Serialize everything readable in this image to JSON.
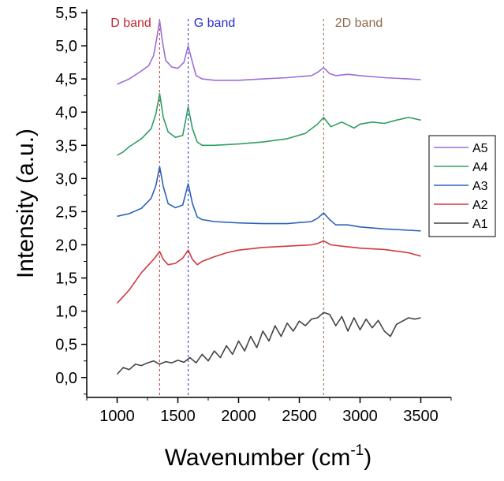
{
  "chart_data": {
    "type": "line",
    "title": "",
    "xlabel": "Wavenumber (cm",
    "xlabel_sup": "-1",
    "xlabel_close": ")",
    "ylabel": "Intensity (a.u.)",
    "xlim": [
      750,
      3750
    ],
    "ylim": [
      -0.3,
      5.5
    ],
    "x_ticks": [
      1000,
      1500,
      2000,
      2500,
      3000,
      3500
    ],
    "x_tick_labels": [
      "1000",
      "1500",
      "2000",
      "2500",
      "3000",
      "3500"
    ],
    "y_ticks": [
      0.0,
      0.5,
      1.0,
      1.5,
      2.0,
      2.5,
      3.0,
      3.5,
      4.0,
      4.5,
      5.0,
      5.5
    ],
    "y_tick_labels": [
      "0,0",
      "0,5",
      "1,0",
      "1,5",
      "2,0",
      "2,5",
      "3,0",
      "3,5",
      "4,0",
      "4,5",
      "5,0",
      "5,5"
    ],
    "grid": false,
    "legend_position": "right",
    "bands": [
      {
        "label": "D band",
        "x": 1350,
        "color": "#c0282e"
      },
      {
        "label": "G band",
        "x": 1585,
        "color": "#2b2bd0"
      },
      {
        "label": "2D band",
        "x": 2700,
        "color": "#8b6b4a"
      }
    ],
    "series": [
      {
        "name": "A5",
        "color": "#9b6fd6",
        "x": [
          1000,
          1100,
          1200,
          1260,
          1300,
          1330,
          1350,
          1370,
          1400,
          1450,
          1500,
          1550,
          1585,
          1610,
          1650,
          1700,
          1800,
          2000,
          2200,
          2400,
          2600,
          2650,
          2700,
          2750,
          2800,
          2900,
          2950,
          3000,
          3200,
          3400,
          3500
        ],
        "y": [
          4.42,
          4.5,
          4.62,
          4.7,
          4.85,
          5.15,
          5.38,
          5.1,
          4.78,
          4.68,
          4.66,
          4.75,
          5.0,
          4.82,
          4.55,
          4.5,
          4.48,
          4.48,
          4.5,
          4.52,
          4.55,
          4.6,
          4.67,
          4.58,
          4.55,
          4.57,
          4.56,
          4.55,
          4.52,
          4.5,
          4.49
        ]
      },
      {
        "name": "A4",
        "color": "#2e9e62",
        "x": [
          1000,
          1050,
          1100,
          1200,
          1280,
          1320,
          1350,
          1380,
          1420,
          1480,
          1540,
          1585,
          1620,
          1660,
          1700,
          1800,
          2000,
          2200,
          2400,
          2550,
          2650,
          2700,
          2760,
          2850,
          2950,
          3000,
          3100,
          3200,
          3300,
          3400,
          3500
        ],
        "y": [
          3.35,
          3.4,
          3.48,
          3.6,
          3.75,
          3.98,
          4.28,
          3.92,
          3.7,
          3.62,
          3.65,
          4.08,
          3.75,
          3.55,
          3.5,
          3.5,
          3.52,
          3.55,
          3.6,
          3.68,
          3.82,
          3.92,
          3.78,
          3.85,
          3.76,
          3.82,
          3.85,
          3.83,
          3.88,
          3.92,
          3.88
        ]
      },
      {
        "name": "A3",
        "color": "#2a62b8",
        "x": [
          1000,
          1100,
          1200,
          1280,
          1320,
          1350,
          1380,
          1420,
          1480,
          1540,
          1585,
          1620,
          1660,
          1700,
          1800,
          2000,
          2200,
          2400,
          2600,
          2650,
          2700,
          2750,
          2800,
          2900,
          3000,
          3200,
          3400,
          3500
        ],
        "y": [
          2.43,
          2.47,
          2.55,
          2.7,
          2.9,
          3.18,
          2.88,
          2.62,
          2.56,
          2.6,
          2.92,
          2.62,
          2.42,
          2.38,
          2.35,
          2.33,
          2.32,
          2.32,
          2.35,
          2.4,
          2.48,
          2.38,
          2.3,
          2.3,
          2.27,
          2.24,
          2.22,
          2.21
        ]
      },
      {
        "name": "A2",
        "color": "#d0393e",
        "x": [
          1000,
          1050,
          1100,
          1150,
          1200,
          1250,
          1300,
          1330,
          1350,
          1380,
          1420,
          1480,
          1540,
          1585,
          1620,
          1660,
          1700,
          1800,
          1900,
          2000,
          2200,
          2400,
          2600,
          2650,
          2700,
          2760,
          2850,
          3000,
          3200,
          3400,
          3500
        ],
        "y": [
          1.12,
          1.22,
          1.32,
          1.45,
          1.58,
          1.68,
          1.78,
          1.85,
          1.9,
          1.78,
          1.7,
          1.72,
          1.8,
          1.92,
          1.78,
          1.7,
          1.75,
          1.82,
          1.88,
          1.92,
          1.96,
          1.98,
          2.0,
          2.02,
          2.06,
          2.0,
          1.98,
          1.95,
          1.93,
          1.88,
          1.83
        ]
      },
      {
        "name": "A1",
        "color": "#444444",
        "x": [
          1000,
          1050,
          1100,
          1150,
          1200,
          1250,
          1300,
          1350,
          1400,
          1450,
          1500,
          1550,
          1600,
          1650,
          1700,
          1750,
          1800,
          1850,
          1900,
          1950,
          2000,
          2050,
          2100,
          2150,
          2200,
          2250,
          2300,
          2350,
          2400,
          2450,
          2500,
          2550,
          2600,
          2650,
          2700,
          2750,
          2800,
          2850,
          2900,
          2950,
          3000,
          3050,
          3100,
          3150,
          3200,
          3250,
          3300,
          3350,
          3400,
          3450,
          3500
        ],
        "y": [
          0.05,
          0.15,
          0.12,
          0.2,
          0.18,
          0.22,
          0.25,
          0.2,
          0.24,
          0.22,
          0.26,
          0.23,
          0.3,
          0.22,
          0.35,
          0.25,
          0.4,
          0.3,
          0.48,
          0.35,
          0.55,
          0.4,
          0.62,
          0.45,
          0.7,
          0.55,
          0.78,
          0.62,
          0.82,
          0.7,
          0.85,
          0.78,
          0.88,
          0.9,
          0.98,
          0.95,
          0.78,
          0.92,
          0.7,
          0.9,
          0.72,
          0.88,
          0.75,
          0.86,
          0.7,
          0.62,
          0.8,
          0.85,
          0.9,
          0.88,
          0.9
        ]
      }
    ]
  }
}
